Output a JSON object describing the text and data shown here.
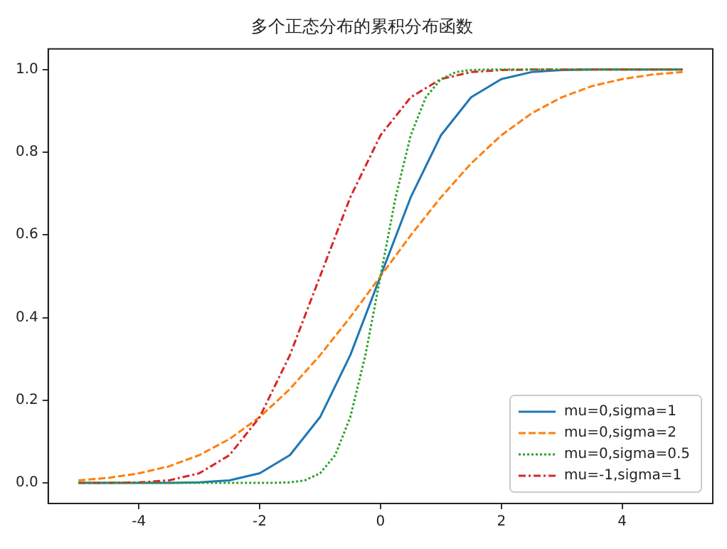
{
  "chart_data": {
    "type": "line",
    "title": "多个正态分布的累积分布函数",
    "x": [
      -5,
      -4.5,
      -4,
      -3.5,
      -3,
      -2.5,
      -2,
      -1.5,
      -1,
      -0.5,
      0,
      0.5,
      1,
      1.5,
      2,
      2.5,
      3,
      3.5,
      4,
      4.5,
      5
    ],
    "series": [
      {
        "name": "mu=0,sigma=1",
        "color": "#1f77b4",
        "line_style": "solid",
        "values": [
          0,
          0,
          0,
          0,
          0.001,
          0.006,
          0.023,
          0.067,
          0.159,
          0.309,
          0.5,
          0.691,
          0.841,
          0.933,
          0.977,
          0.994,
          0.999,
          1,
          1,
          1,
          1
        ]
      },
      {
        "name": "mu=0,sigma=2",
        "color": "#ff7f0e",
        "line_style": "dashed",
        "values": [
          0.006,
          0.012,
          0.023,
          0.04,
          0.067,
          0.106,
          0.159,
          0.227,
          0.309,
          0.401,
          0.5,
          0.599,
          0.691,
          0.773,
          0.841,
          0.894,
          0.933,
          0.96,
          0.977,
          0.988,
          0.994
        ]
      },
      {
        "name": "mu=0,sigma=0.5",
        "color": "#2ca02c",
        "line_style": "dotted",
        "x": [
          -5,
          -2,
          -1.75,
          -1.5,
          -1.25,
          -1,
          -0.75,
          -0.5,
          -0.25,
          0,
          0.25,
          0.5,
          0.75,
          1,
          1.25,
          1.5,
          1.75,
          2,
          5
        ],
        "values": [
          0,
          0,
          0,
          0.001,
          0.006,
          0.023,
          0.067,
          0.159,
          0.309,
          0.5,
          0.691,
          0.841,
          0.933,
          0.977,
          0.994,
          0.999,
          1,
          1,
          1
        ]
      },
      {
        "name": "mu=-1,sigma=1",
        "color": "#d62728",
        "line_style": "dashdot",
        "values": [
          0,
          0,
          0.001,
          0.006,
          0.023,
          0.067,
          0.159,
          0.309,
          0.5,
          0.691,
          0.841,
          0.933,
          0.977,
          0.994,
          0.999,
          1,
          1,
          1,
          1,
          1,
          1
        ]
      }
    ],
    "xlim": [
      -5.5,
      5.5
    ],
    "xticks": [
      -4,
      -2,
      0,
      2,
      4
    ],
    "ylim": [
      -0.05,
      1.05
    ],
    "yticks": [
      {
        "value": 0,
        "label": "0.0"
      },
      {
        "value": 0.2,
        "label": "0.2"
      },
      {
        "value": 0.4,
        "label": "0.4"
      },
      {
        "value": 0.6,
        "label": "0.6"
      },
      {
        "value": 0.8,
        "label": "0.8"
      },
      {
        "value": 1,
        "label": "1.0"
      }
    ],
    "grid": false,
    "legend": "bottom right",
    "marker": "none"
  }
}
